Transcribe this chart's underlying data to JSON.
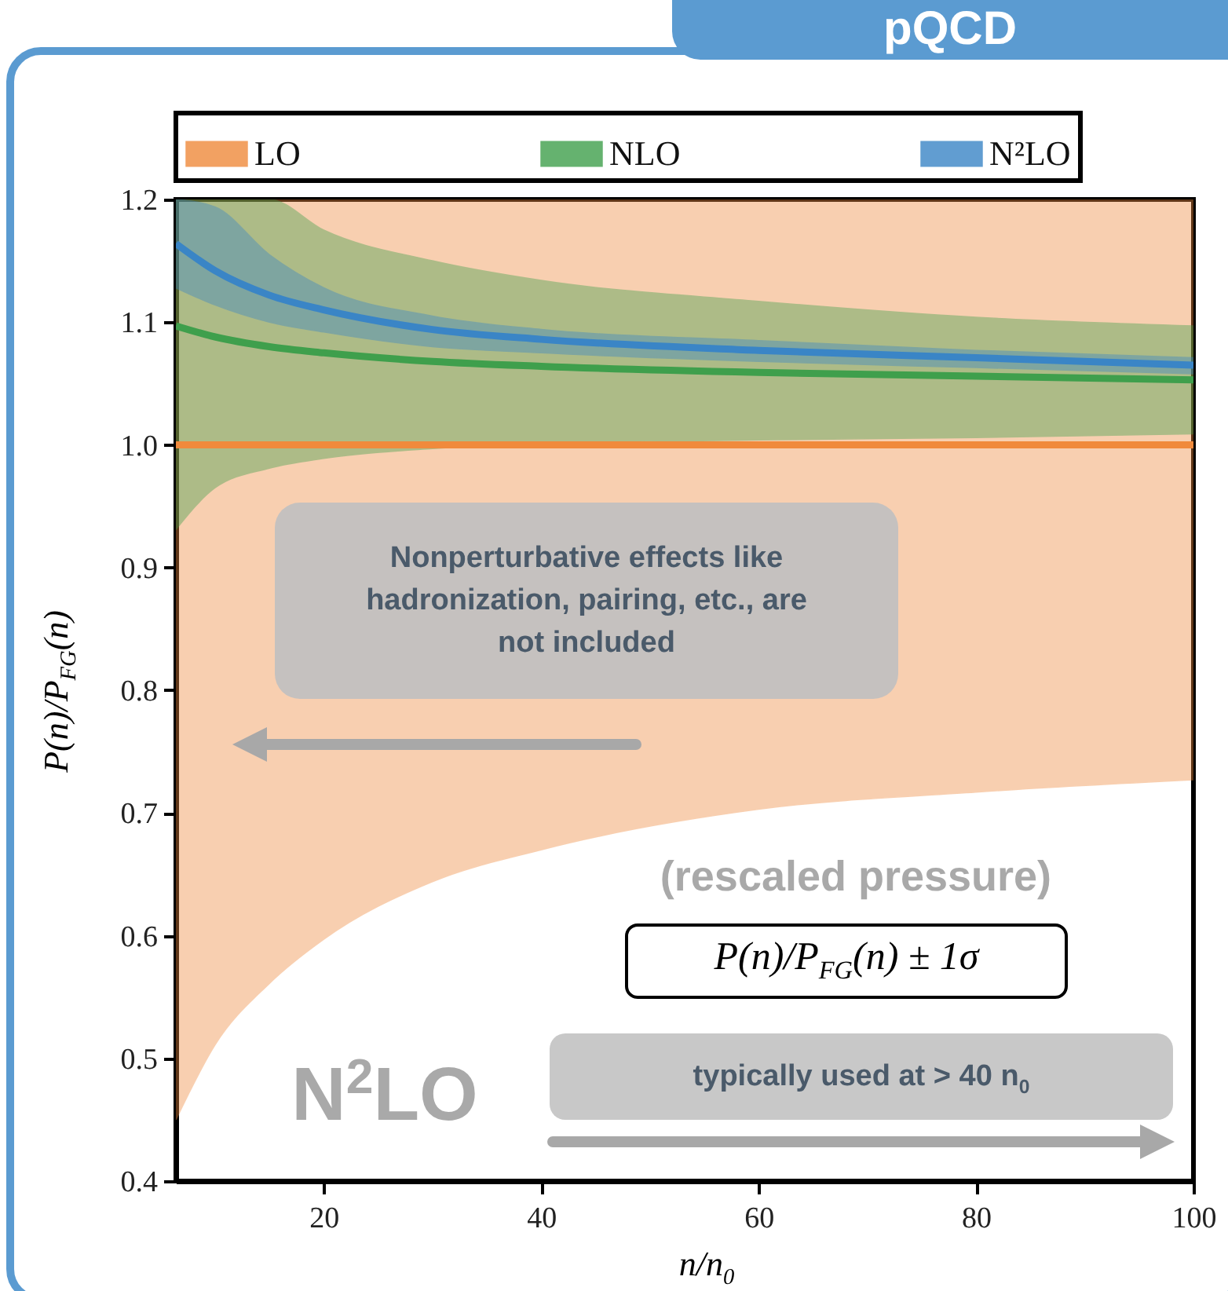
{
  "chart_data": {
    "type": "line",
    "title": "pQCD",
    "xlabel": "n/n$_{0}$",
    "ylabel": "P(n)/P$_{FG}$(n)",
    "legend": "top",
    "x": [
      6.4,
      10,
      15,
      20,
      30,
      40,
      60,
      80,
      100
    ],
    "xlim": [
      6.4,
      100
    ],
    "xticks": [
      20,
      40,
      60,
      80,
      100
    ],
    "ylim": [
      0.4,
      1.2
    ],
    "yticks": [
      0.4,
      0.5,
      0.6,
      0.7,
      0.8,
      0.9,
      {
        "value": 1,
        "label": "1.0"
      },
      1.1,
      1.2
    ],
    "series": [
      {
        "name": "LO",
        "color": "#f08a3c",
        "values": [
          1,
          1,
          1,
          1,
          1,
          1,
          1,
          1,
          1
        ],
        "lower": [
          0.45,
          0.511,
          0.561,
          0.597,
          0.644,
          0.67,
          0.703,
          0.717,
          0.727
        ],
        "upper": [
          1.2,
          1.2,
          1.2,
          1.2,
          1.2,
          1.2,
          1.2,
          1.2,
          1.2
        ]
      },
      {
        "name": "NLO",
        "color": "#3f9f4c",
        "values": [
          1.097,
          1.088,
          1.08,
          1.075,
          1.068,
          1.064,
          1.059,
          1.056,
          1.053
        ],
        "lower": [
          0.931,
          0.965,
          0.981,
          0.989,
          0.997,
          1.001,
          1.004,
          1.006,
          1.009
        ],
        "upper": [
          1.2,
          1.2,
          1.2,
          1.175,
          1.15,
          1.134,
          1.117,
          1.104,
          1.097
        ]
      },
      {
        "name": "N²LO",
        "color": "#3a85c6",
        "values": [
          1.164,
          1.142,
          1.122,
          1.11,
          1.094,
          1.086,
          1.077,
          1.071,
          1.065
        ],
        "lower": [
          1.128,
          1.114,
          1.1,
          1.092,
          1.08,
          1.075,
          1.068,
          1.063,
          1.058
        ],
        "upper": [
          1.2,
          1.194,
          1.155,
          1.128,
          1.105,
          1.094,
          1.085,
          1.077,
          1.071
        ]
      }
    ],
    "annotations": [
      "Nonperturbative effects like hadronization, pairing, etc., are not included",
      "(rescaled pressure)",
      "P(n)/P$_{FG}$(n) ± 1σ",
      "N$^{2}$LO",
      "typically used at > 40 n$_{0}$"
    ]
  }
}
